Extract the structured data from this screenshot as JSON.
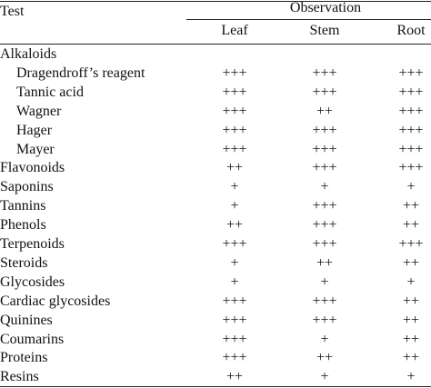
{
  "table": {
    "header": {
      "test": "Test",
      "group": "Observation",
      "columns": [
        "Leaf",
        "Stem",
        "Root"
      ]
    },
    "rows": [
      {
        "test": "Alkaloids",
        "subrows": [
          {
            "test": "Dragendroff’s reagent",
            "values": [
              "+++",
              "+++",
              "+++"
            ]
          },
          {
            "test": "Tannic acid",
            "values": [
              "+++",
              "+++",
              "+++"
            ]
          },
          {
            "test": "Wagner",
            "values": [
              "+++",
              "++",
              "+++"
            ]
          },
          {
            "test": "Hager",
            "values": [
              "+++",
              "+++",
              "+++"
            ]
          },
          {
            "test": "Mayer",
            "values": [
              "+++",
              "+++",
              "+++"
            ]
          }
        ]
      },
      {
        "test": "Flavonoids",
        "values": [
          "++",
          "+++",
          "+++"
        ]
      },
      {
        "test": "Saponins",
        "values": [
          "+",
          "+",
          "+"
        ]
      },
      {
        "test": "Tannins",
        "values": [
          "+",
          "+++",
          "++"
        ]
      },
      {
        "test": "Phenols",
        "values": [
          "++",
          "+++",
          "++"
        ]
      },
      {
        "test": "Terpenoids",
        "values": [
          "+++",
          "+++",
          "+++"
        ]
      },
      {
        "test": "Steroids",
        "values": [
          "+",
          "++",
          "++"
        ]
      },
      {
        "test": "Glycosides",
        "values": [
          "+",
          "+",
          "+"
        ]
      },
      {
        "test": "Cardiac glycosides",
        "values": [
          "+++",
          "+++",
          "++"
        ]
      },
      {
        "test": "Quinines",
        "values": [
          "+++",
          "+++",
          "++"
        ]
      },
      {
        "test": "Coumarins",
        "values": [
          "+++",
          "+",
          "++"
        ]
      },
      {
        "test": "Proteins",
        "values": [
          "+++",
          "++",
          "++"
        ]
      },
      {
        "test": "Resins",
        "values": [
          "++",
          "+",
          "+"
        ]
      }
    ]
  }
}
